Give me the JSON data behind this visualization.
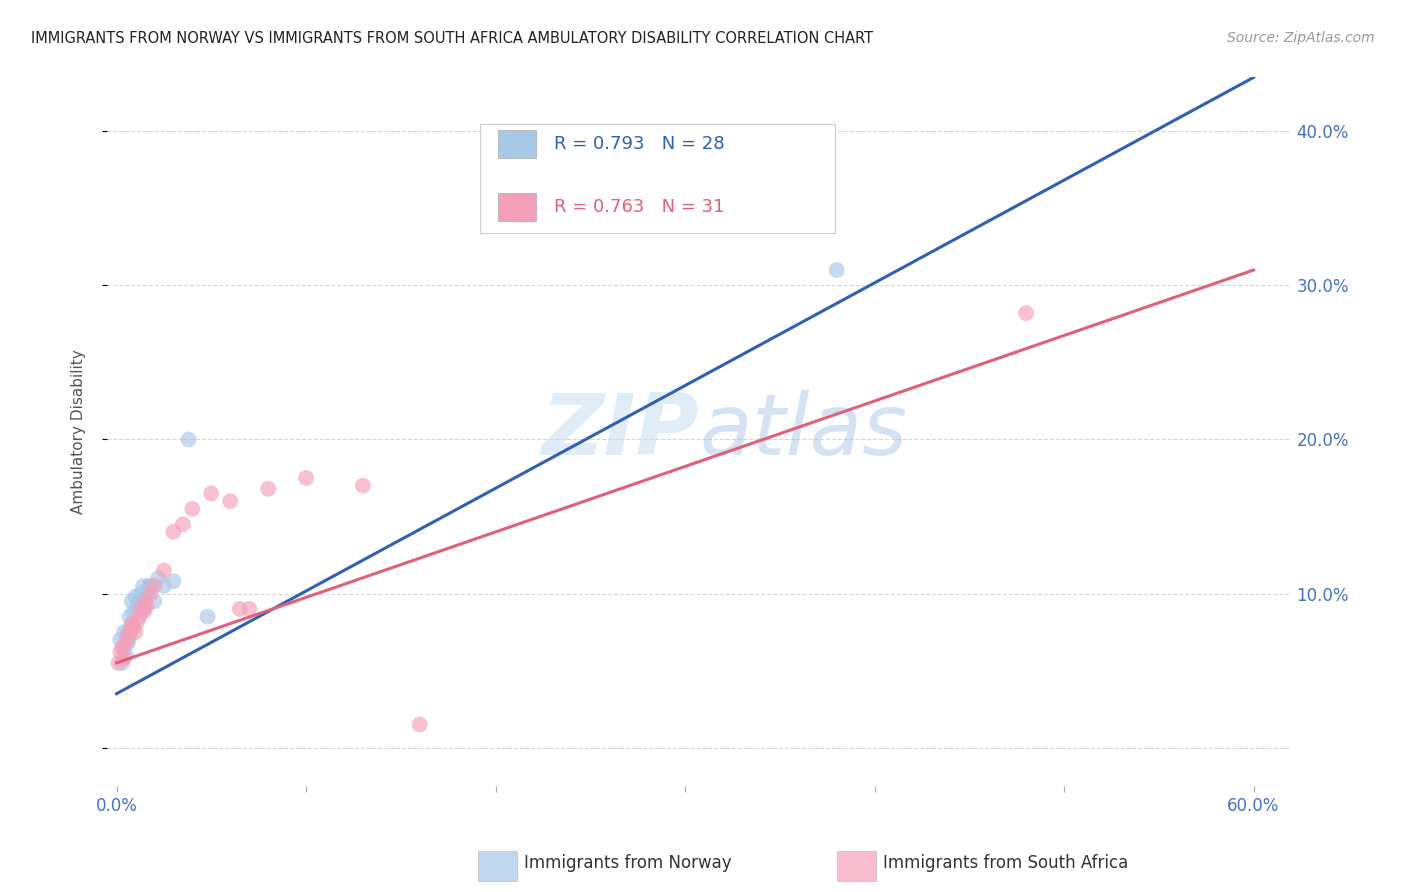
{
  "title": "IMMIGRANTS FROM NORWAY VS IMMIGRANTS FROM SOUTH AFRICA AMBULATORY DISABILITY CORRELATION CHART",
  "source_text": "Source: ZipAtlas.com",
  "ylabel": "Ambulatory Disability",
  "norway_R": 0.793,
  "norway_N": 28,
  "sa_R": 0.763,
  "sa_N": 31,
  "norway_color": "#a8c8e8",
  "sa_color": "#f4a0b8",
  "norway_line_color": "#3060b0",
  "sa_line_color": "#e0607a",
  "norway_scatter_x": [
    0.002,
    0.003,
    0.004,
    0.004,
    0.005,
    0.006,
    0.006,
    0.007,
    0.007,
    0.008,
    0.008,
    0.009,
    0.01,
    0.011,
    0.012,
    0.013,
    0.014,
    0.015,
    0.016,
    0.017,
    0.018,
    0.02,
    0.022,
    0.025,
    0.03,
    0.038,
    0.048,
    0.38
  ],
  "norway_scatter_y": [
    0.07,
    0.055,
    0.065,
    0.075,
    0.06,
    0.068,
    0.075,
    0.072,
    0.085,
    0.08,
    0.095,
    0.088,
    0.098,
    0.092,
    0.095,
    0.1,
    0.105,
    0.09,
    0.1,
    0.105,
    0.105,
    0.095,
    0.11,
    0.105,
    0.108,
    0.2,
    0.085,
    0.31
  ],
  "sa_scatter_x": [
    0.001,
    0.002,
    0.003,
    0.004,
    0.005,
    0.006,
    0.007,
    0.008,
    0.009,
    0.01,
    0.011,
    0.012,
    0.013,
    0.014,
    0.015,
    0.016,
    0.018,
    0.02,
    0.025,
    0.03,
    0.035,
    0.04,
    0.05,
    0.06,
    0.065,
    0.07,
    0.08,
    0.1,
    0.13,
    0.16,
    0.48
  ],
  "sa_scatter_y": [
    0.055,
    0.062,
    0.065,
    0.058,
    0.068,
    0.072,
    0.075,
    0.08,
    0.078,
    0.075,
    0.082,
    0.085,
    0.09,
    0.088,
    0.095,
    0.092,
    0.1,
    0.105,
    0.115,
    0.14,
    0.145,
    0.155,
    0.165,
    0.16,
    0.09,
    0.09,
    0.168,
    0.175,
    0.17,
    0.015,
    0.282
  ],
  "xlim": [
    -0.005,
    0.62
  ],
  "ylim": [
    -0.025,
    0.435
  ],
  "yticks": [
    0.0,
    0.1,
    0.2,
    0.3,
    0.4
  ],
  "ytick_labels": [
    "",
    "10.0%",
    "20.0%",
    "30.0%",
    "40.0%"
  ],
  "xticks": [
    0.0,
    0.1,
    0.2,
    0.3,
    0.4,
    0.5,
    0.6
  ],
  "xtick_labels": [
    "0.0%",
    "",
    "",
    "",
    "",
    "",
    "60.0%"
  ],
  "background_color": "#ffffff",
  "grid_color": "#cccccc",
  "norway_trend_x": [
    0.0,
    0.6
  ],
  "norway_trend_y": [
    0.035,
    0.435
  ],
  "sa_trend_x": [
    0.0,
    0.6
  ],
  "sa_trend_y": [
    0.055,
    0.31
  ]
}
